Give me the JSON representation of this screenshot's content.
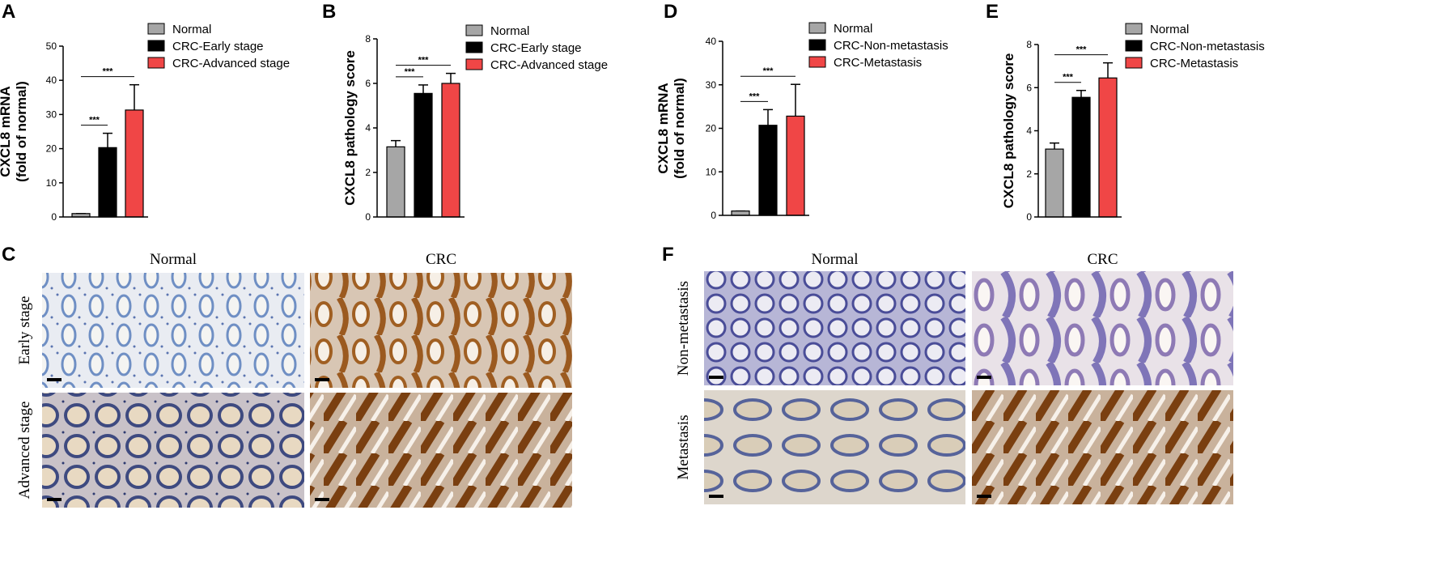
{
  "chart_data": [
    {
      "type": "bar",
      "y_label": [
        "CXCL8 mRNA",
        "(fold of normal)"
      ],
      "categories": [
        "Normal",
        "CRC-Early stage",
        "CRC-Advanced stage"
      ],
      "colors": [
        "#a6a6a6",
        "#000000",
        "#f04646"
      ],
      "values": [
        1,
        20.3,
        31.3
      ],
      "errors": [
        0,
        4.2,
        7.4
      ],
      "ylim": [
        0,
        50
      ],
      "yticks": [
        0,
        10,
        20,
        30,
        40,
        50
      ],
      "annotations": [
        {
          "text": "***",
          "between": [
            "Normal",
            "CRC-Early stage"
          ]
        },
        {
          "text": "***",
          "between": [
            "Normal",
            "CRC-Advanced stage"
          ]
        }
      ]
    },
    {
      "type": "bar",
      "y_label": [
        "CXCL8 pathology score"
      ],
      "categories": [
        "Normal",
        "CRC-Early stage",
        "CRC-Advanced stage"
      ],
      "colors": [
        "#a6a6a6",
        "#000000",
        "#f04646"
      ],
      "values": [
        3.15,
        5.55,
        6.0
      ],
      "errors": [
        0.28,
        0.38,
        0.45
      ],
      "ylim": [
        0,
        8
      ],
      "yticks": [
        0,
        2,
        4,
        6,
        8
      ],
      "annotations": [
        {
          "text": "***",
          "between": [
            "Normal",
            "CRC-Early stage"
          ]
        },
        {
          "text": "***",
          "between": [
            "Normal",
            "CRC-Advanced stage"
          ]
        }
      ]
    },
    {
      "type": "bar",
      "y_label": [
        "CXCL8 mRNA",
        "(fold of normal)"
      ],
      "categories": [
        "Normal",
        "CRC-Non-metastasis",
        "CRC-Metastasis"
      ],
      "colors": [
        "#a6a6a6",
        "#000000",
        "#f04646"
      ],
      "values": [
        1,
        20.7,
        22.8
      ],
      "errors": [
        0,
        3.6,
        7.3
      ],
      "ylim": [
        0,
        40
      ],
      "yticks": [
        0,
        10,
        20,
        30,
        40
      ],
      "annotations": [
        {
          "text": "***",
          "between": [
            "Normal",
            "CRC-Non-metastasis"
          ]
        },
        {
          "text": "***",
          "between": [
            "Normal",
            "CRC-Metastasis"
          ]
        }
      ]
    },
    {
      "type": "bar",
      "y_label": [
        "CXCL8 pathology score"
      ],
      "categories": [
        "Normal",
        "CRC-Non-metastasis",
        "CRC-Metastasis"
      ],
      "colors": [
        "#a6a6a6",
        "#000000",
        "#f04646"
      ],
      "values": [
        3.15,
        5.55,
        6.45
      ],
      "errors": [
        0.28,
        0.32,
        0.7
      ],
      "ylim": [
        0,
        8
      ],
      "yticks": [
        0,
        2,
        4,
        6,
        8
      ],
      "annotations": [
        {
          "text": "***",
          "between": [
            "Normal",
            "CRC-Non-metastasis"
          ]
        },
        {
          "text": "***",
          "between": [
            "Normal",
            "CRC-Metastasis"
          ]
        }
      ]
    }
  ],
  "panel_labels": [
    "A",
    "B",
    "C",
    "D",
    "E",
    "F"
  ],
  "micrographs": [
    {
      "columns": [
        "Normal",
        "CRC"
      ],
      "rows": [
        "Early stage",
        "Advanced stage"
      ]
    },
    {
      "columns": [
        "Normal",
        "CRC"
      ],
      "rows": [
        "Non-metastasis",
        "Metastasis"
      ]
    }
  ]
}
